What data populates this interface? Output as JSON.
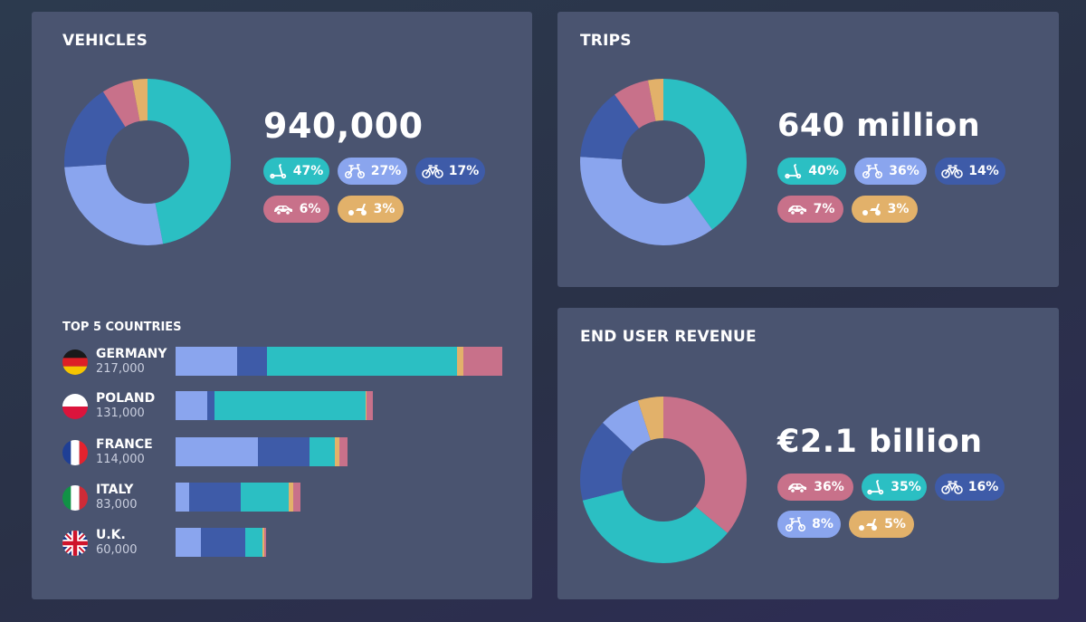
{
  "colors": {
    "scooter": "#2bbfc3",
    "moped": "#8aa5ee",
    "bike": "#3e5ba8",
    "car": "#c8718a",
    "motor_scooter": "#e2b16a"
  },
  "vehicles": {
    "title": "VEHICLES",
    "total": "940,000",
    "pills": [
      {
        "icon": "kick-scooter-icon",
        "type": "scooter",
        "label": "47%"
      },
      {
        "icon": "moped-icon",
        "type": "moped",
        "label": "27%"
      },
      {
        "icon": "bicycle-icon",
        "type": "bike",
        "label": "17%"
      },
      {
        "icon": "car-icon",
        "type": "car",
        "label": "6%"
      },
      {
        "icon": "motor-scooter-icon",
        "type": "motor_scooter",
        "label": "3%"
      }
    ]
  },
  "trips": {
    "title": "TRIPS",
    "total": "640 million",
    "pills": [
      {
        "icon": "kick-scooter-icon",
        "type": "scooter",
        "label": "40%"
      },
      {
        "icon": "moped-icon",
        "type": "moped",
        "label": "36%"
      },
      {
        "icon": "bicycle-icon",
        "type": "bike",
        "label": "14%"
      },
      {
        "icon": "car-icon",
        "type": "car",
        "label": "7%"
      },
      {
        "icon": "motor-scooter-icon",
        "type": "motor_scooter",
        "label": "3%"
      }
    ]
  },
  "revenue": {
    "title": "END USER REVENUE",
    "total": "€2.1 billion",
    "pills": [
      {
        "icon": "car-icon",
        "type": "car",
        "label": "36%"
      },
      {
        "icon": "kick-scooter-icon",
        "type": "scooter",
        "label": "35%"
      },
      {
        "icon": "bicycle-icon",
        "type": "bike",
        "label": "16%"
      },
      {
        "icon": "moped-icon",
        "type": "moped",
        "label": "8%"
      },
      {
        "icon": "motor-scooter-icon",
        "type": "motor_scooter",
        "label": "5%"
      }
    ]
  },
  "countries": {
    "title": "TOP 5 COUNTRIES",
    "items": [
      {
        "name": "GERMANY",
        "value": "217,000",
        "flag": "germany-flag-icon"
      },
      {
        "name": "POLAND",
        "value": "131,000",
        "flag": "poland-flag-icon"
      },
      {
        "name": "FRANCE",
        "value": "114,000",
        "flag": "france-flag-icon"
      },
      {
        "name": "ITALY",
        "value": "83,000",
        "flag": "italy-flag-icon"
      },
      {
        "name": "U.K.",
        "value": "60,000",
        "flag": "uk-flag-icon"
      }
    ]
  },
  "chart_data": [
    {
      "type": "pie",
      "title": "VEHICLES",
      "labels": [
        "scooter",
        "moped",
        "bike",
        "car",
        "motor_scooter"
      ],
      "values": [
        47,
        27,
        17,
        6,
        3
      ]
    },
    {
      "type": "pie",
      "title": "TRIPS",
      "labels": [
        "scooter",
        "moped",
        "bike",
        "car",
        "motor_scooter"
      ],
      "values": [
        40,
        36,
        14,
        7,
        3
      ]
    },
    {
      "type": "pie",
      "title": "END USER REVENUE",
      "labels": [
        "car",
        "scooter",
        "bike",
        "moped",
        "motor_scooter"
      ],
      "values": [
        36,
        35,
        16,
        8,
        5
      ]
    },
    {
      "type": "bar",
      "orientation": "horizontal",
      "stacked": true,
      "title": "TOP 5 COUNTRIES",
      "categories": [
        "GERMANY",
        "POLAND",
        "FRANCE",
        "ITALY",
        "U.K."
      ],
      "totals": [
        217000,
        131000,
        114000,
        83000,
        60000
      ],
      "series": [
        {
          "name": "moped",
          "values": [
            41000,
            21000,
            55000,
            9000,
            17000
          ]
        },
        {
          "name": "bike",
          "values": [
            20000,
            5000,
            34000,
            34000,
            29000
          ]
        },
        {
          "name": "scooter",
          "values": [
            126000,
            100000,
            17000,
            32000,
            12000
          ]
        },
        {
          "name": "motor_scooter",
          "values": [
            4000,
            1000,
            3000,
            3000,
            1000
          ]
        },
        {
          "name": "car",
          "values": [
            26000,
            4000,
            5000,
            5000,
            1000
          ]
        }
      ]
    }
  ]
}
